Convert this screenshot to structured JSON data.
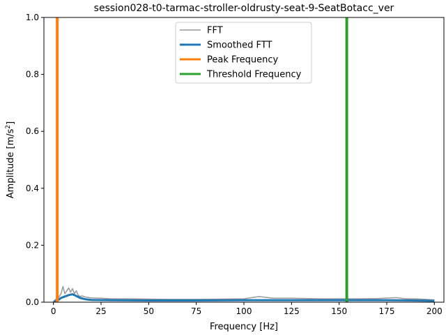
{
  "chart_data": {
    "type": "line",
    "title": "session028-t0-tarmac-stroller-oldrusty-seat-9-SeatBotacc_ver",
    "xlabel": "Frequency [Hz]",
    "ylabel_main": "Amplitude [m/s",
    "ylabel_sup": "2",
    "ylabel_close": "]",
    "xlim": [
      -5,
      205
    ],
    "ylim": [
      0,
      1.0
    ],
    "xticks": [
      0,
      25,
      50,
      75,
      100,
      125,
      150,
      175,
      200
    ],
    "xtick_labels": [
      "0",
      "25",
      "50",
      "75",
      "100",
      "125",
      "150",
      "175",
      "200"
    ],
    "yticks": [
      0.0,
      0.2,
      0.4,
      0.6,
      0.8,
      1.0
    ],
    "ytick_labels": [
      "0.0",
      "0.2",
      "0.4",
      "0.6",
      "0.8",
      "1.0"
    ],
    "grid": false,
    "legend_placement": "upper center",
    "series": [
      {
        "name": "FFT",
        "color": "#999999",
        "points": [
          [
            0,
            0.0
          ],
          [
            1,
            0.01
          ],
          [
            2,
            0.008
          ],
          [
            3,
            0.02
          ],
          [
            4,
            0.03
          ],
          [
            5,
            0.055
          ],
          [
            6,
            0.03
          ],
          [
            7,
            0.04
          ],
          [
            8,
            0.05
          ],
          [
            9,
            0.035
          ],
          [
            10,
            0.048
          ],
          [
            11,
            0.03
          ],
          [
            12,
            0.04
          ],
          [
            13,
            0.025
          ],
          [
            14,
            0.02
          ],
          [
            15,
            0.022
          ],
          [
            17,
            0.018
          ],
          [
            20,
            0.015
          ],
          [
            25,
            0.014
          ],
          [
            30,
            0.012
          ],
          [
            40,
            0.012
          ],
          [
            50,
            0.011
          ],
          [
            60,
            0.01
          ],
          [
            75,
            0.01
          ],
          [
            90,
            0.011
          ],
          [
            100,
            0.012
          ],
          [
            108,
            0.02
          ],
          [
            115,
            0.014
          ],
          [
            125,
            0.014
          ],
          [
            140,
            0.012
          ],
          [
            150,
            0.012
          ],
          [
            160,
            0.012
          ],
          [
            170,
            0.013
          ],
          [
            180,
            0.016
          ],
          [
            185,
            0.012
          ],
          [
            190,
            0.012
          ],
          [
            195,
            0.01
          ],
          [
            200,
            0.008
          ]
        ]
      },
      {
        "name": "Smoothed FTT",
        "color": "#1f77b4",
        "points": [
          [
            0,
            0.002
          ],
          [
            2,
            0.005
          ],
          [
            4,
            0.015
          ],
          [
            6,
            0.02
          ],
          [
            8,
            0.025
          ],
          [
            10,
            0.028
          ],
          [
            12,
            0.022
          ],
          [
            14,
            0.015
          ],
          [
            17,
            0.01
          ],
          [
            20,
            0.008
          ],
          [
            30,
            0.007
          ],
          [
            50,
            0.006
          ],
          [
            75,
            0.006
          ],
          [
            100,
            0.007
          ],
          [
            125,
            0.007
          ],
          [
            150,
            0.007
          ],
          [
            175,
            0.007
          ],
          [
            190,
            0.006
          ],
          [
            200,
            0.005
          ]
        ]
      },
      {
        "name": "Peak Frequency",
        "color": "#ff7f0e",
        "vline_x": 2
      },
      {
        "name": "Threshold Frequency",
        "color": "#2ca02c",
        "vline_x": 154
      }
    ]
  }
}
